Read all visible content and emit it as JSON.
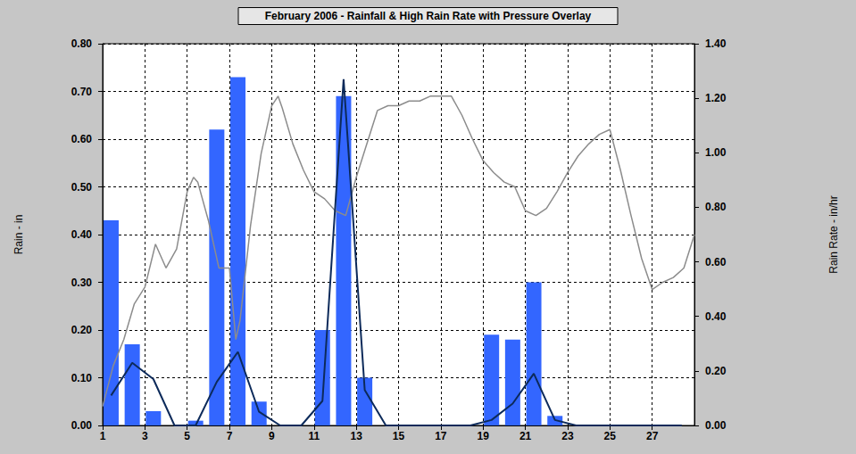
{
  "chart_data": {
    "type": "bar",
    "title": "February 2006 - Rainfall & High Rain Rate with Pressure Overlay",
    "y_label": "Rain - in",
    "y2_label": "Rain Rate - in/hr",
    "xlim": [
      1,
      29
    ],
    "xticks": [
      1,
      3,
      5,
      7,
      9,
      11,
      13,
      15,
      17,
      19,
      21,
      23,
      25,
      27
    ],
    "ylim": [
      0,
      0.8
    ],
    "yticks": [
      {
        "value": 0,
        "label": "0.00"
      },
      {
        "value": 0.1,
        "label": "0.10"
      },
      {
        "value": 0.2,
        "label": "0.20"
      },
      {
        "value": 0.3,
        "label": "0.30"
      },
      {
        "value": 0.4,
        "label": "0.40"
      },
      {
        "value": 0.5,
        "label": "0.50"
      },
      {
        "value": 0.6,
        "label": "0.60"
      },
      {
        "value": 0.7,
        "label": "0.70"
      },
      {
        "value": 0.8,
        "label": "0.80"
      }
    ],
    "y2lim": [
      0,
      1.4
    ],
    "y2ticks": [
      {
        "value": 0,
        "label": "0.00"
      },
      {
        "value": 0.2,
        "label": "0.20"
      },
      {
        "value": 0.4,
        "label": "0.40"
      },
      {
        "value": 0.6,
        "label": "0.60"
      },
      {
        "value": 0.8,
        "label": "0.80"
      },
      {
        "value": 1.0,
        "label": "1.00"
      },
      {
        "value": 1.2,
        "label": "1.20"
      },
      {
        "value": 1.4,
        "label": "1.40"
      }
    ],
    "grid": true,
    "series": [
      {
        "type": "bar",
        "color": "#3366ff",
        "x": [
          1.4,
          2.4,
          3.4,
          4.4,
          5.4,
          6.4,
          7.4,
          8.4,
          9.4,
          10.4,
          11.4,
          12.4,
          13.4,
          14.4,
          15.4,
          16.4,
          17.4,
          18.4,
          19.4,
          20.4,
          21.4,
          22.4,
          23.4,
          24.4,
          25.4,
          26.4,
          27.4,
          28.4
        ],
        "values": [
          0.43,
          0.17,
          0.03,
          0,
          0.01,
          0.62,
          0.73,
          0.05,
          0,
          0,
          0.2,
          0.69,
          0.1,
          0,
          0,
          0,
          0,
          0,
          0.19,
          0.18,
          0.3,
          0.02,
          0,
          0,
          0,
          0,
          0,
          0
        ]
      },
      {
        "type": "line",
        "axis": "y2",
        "color": "#0c2a5a",
        "marker": "none",
        "x": [
          1.4,
          2.4,
          3.4,
          4.4,
          5.4,
          6.4,
          7.4,
          8.4,
          9.4,
          10.4,
          11.4,
          12.4,
          13.4,
          14.4,
          15.4,
          16.4,
          17.4,
          18.4,
          19.4,
          20.4,
          21.4,
          22.4,
          23.4,
          24.4,
          25.4,
          26.4,
          27.4,
          28.4
        ],
        "values": [
          0.11,
          0.23,
          0.17,
          0,
          0,
          0.16,
          0.27,
          0.05,
          0,
          0,
          0.09,
          1.27,
          0.13,
          0,
          0,
          0,
          0,
          0,
          0.02,
          0.08,
          0.19,
          0.02,
          0,
          0,
          0,
          0,
          0,
          0
        ]
      },
      {
        "type": "line",
        "color": "#8c8c8c",
        "marker": "none",
        "x": [
          1.0,
          1.5,
          2.0,
          2.5,
          3.0,
          3.5,
          4.0,
          4.5,
          5.0,
          5.3,
          5.5,
          6.0,
          6.5,
          7.0,
          7.3,
          7.5,
          8.0,
          8.5,
          9.0,
          9.3,
          9.5,
          10.0,
          10.5,
          11.0,
          11.5,
          12.0,
          12.5,
          13.0,
          13.5,
          14.0,
          14.5,
          15.0,
          15.5,
          16.0,
          16.5,
          17.0,
          17.5,
          18.0,
          18.5,
          19.0,
          19.5,
          20.0,
          20.5,
          21.0,
          21.5,
          22.0,
          22.5,
          23.0,
          23.5,
          24.0,
          24.5,
          25.0,
          25.5,
          26.0,
          26.5,
          27.0,
          27.5,
          28.0,
          28.5,
          29.0
        ],
        "values": [
          0.04,
          0.125,
          0.18,
          0.255,
          0.29,
          0.38,
          0.33,
          0.37,
          0.49,
          0.52,
          0.51,
          0.43,
          0.33,
          0.33,
          0.18,
          0.22,
          0.42,
          0.57,
          0.67,
          0.69,
          0.665,
          0.59,
          0.535,
          0.49,
          0.475,
          0.45,
          0.44,
          0.52,
          0.59,
          0.66,
          0.67,
          0.67,
          0.68,
          0.68,
          0.69,
          0.69,
          0.69,
          0.65,
          0.6,
          0.555,
          0.53,
          0.51,
          0.5,
          0.45,
          0.44,
          0.455,
          0.49,
          0.53,
          0.565,
          0.59,
          0.61,
          0.62,
          0.535,
          0.44,
          0.35,
          0.285,
          0.3,
          0.31,
          0.33,
          0.4
        ]
      }
    ]
  }
}
